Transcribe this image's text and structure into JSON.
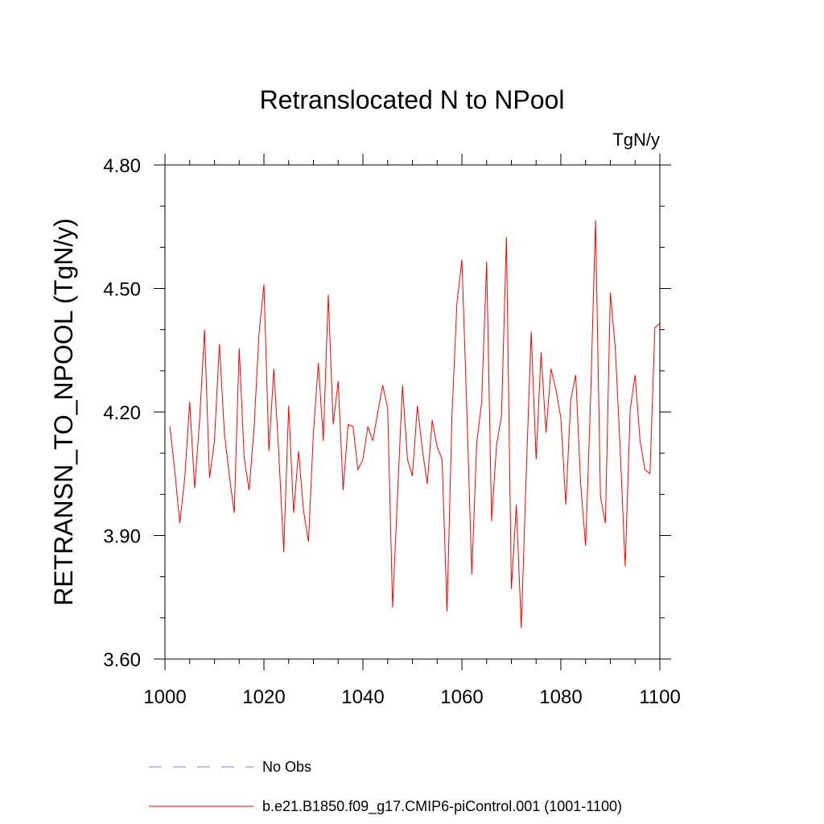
{
  "chart_data": {
    "type": "line",
    "title": "Retranslocated N to NPool",
    "units": "TgN/y",
    "xlabel": "",
    "ylabel": "RETRANSN_TO_NPOOL  (TgN/y)",
    "xlim": [
      1000,
      1100
    ],
    "ylim": [
      3.6,
      4.8
    ],
    "xticks": [
      1000,
      1020,
      1040,
      1060,
      1080,
      1100
    ],
    "xtick_labels": [
      "1000",
      "1020",
      "1040",
      "1060",
      "1080",
      "1100"
    ],
    "yticks": [
      3.6,
      3.9,
      4.2,
      4.5,
      4.8
    ],
    "ytick_labels": [
      "3.60",
      "3.90",
      "4.20",
      "4.50",
      "4.80"
    ],
    "y_minor_step": 0.1,
    "x_minor_step": 5,
    "grid": false,
    "legend": {
      "placement": "below",
      "entries": [
        {
          "label": "No Obs",
          "color": "#8080c0",
          "style": "dashed"
        },
        {
          "label": "b.e21.B1850.f09_g17.CMIP6-piControl.001 (1001-1100)",
          "color": "#ff0000",
          "style": "solid"
        }
      ]
    },
    "series": [
      {
        "name": "b.e21.B1850.f09_g17.CMIP6-piControl.001 (1001-1100)",
        "color": "#ff0000",
        "x": [
          1001,
          1002,
          1003,
          1004,
          1005,
          1006,
          1007,
          1008,
          1009,
          1010,
          1011,
          1012,
          1013,
          1014,
          1015,
          1016,
          1017,
          1018,
          1019,
          1020,
          1021,
          1022,
          1023,
          1024,
          1025,
          1026,
          1027,
          1028,
          1029,
          1030,
          1031,
          1032,
          1033,
          1034,
          1035,
          1036,
          1037,
          1038,
          1039,
          1040,
          1041,
          1042,
          1043,
          1044,
          1045,
          1046,
          1047,
          1048,
          1049,
          1050,
          1051,
          1052,
          1053,
          1054,
          1055,
          1056,
          1057,
          1058,
          1059,
          1060,
          1061,
          1062,
          1063,
          1064,
          1065,
          1066,
          1067,
          1068,
          1069,
          1070,
          1071,
          1072,
          1073,
          1074,
          1075,
          1076,
          1077,
          1078,
          1079,
          1080,
          1081,
          1082,
          1083,
          1084,
          1085,
          1086,
          1087,
          1088,
          1089,
          1090,
          1091,
          1092,
          1093,
          1094,
          1095,
          1096,
          1097,
          1098,
          1099,
          1100
        ],
        "values": [
          4.165,
          4.055,
          3.93,
          4.04,
          4.225,
          4.015,
          4.18,
          4.4,
          4.04,
          4.13,
          4.365,
          4.15,
          4.045,
          3.955,
          4.355,
          4.09,
          4.01,
          4.16,
          4.39,
          4.51,
          4.105,
          4.305,
          4.1,
          3.86,
          4.215,
          3.955,
          4.105,
          3.96,
          3.885,
          4.15,
          4.32,
          4.13,
          4.485,
          4.17,
          4.275,
          4.01,
          4.17,
          4.165,
          4.06,
          4.085,
          4.165,
          4.13,
          4.2,
          4.265,
          4.21,
          3.725,
          4.0,
          4.265,
          4.085,
          4.045,
          4.215,
          4.11,
          4.025,
          4.18,
          4.115,
          4.085,
          3.715,
          4.195,
          4.465,
          4.57,
          4.205,
          3.805,
          4.125,
          4.225,
          4.565,
          3.935,
          4.12,
          4.19,
          4.625,
          3.77,
          3.975,
          3.675,
          4.05,
          4.395,
          4.085,
          4.345,
          4.15,
          4.305,
          4.255,
          4.185,
          3.975,
          4.23,
          4.29,
          4.025,
          3.875,
          4.23,
          4.665,
          3.995,
          3.93,
          4.49,
          4.355,
          4.105,
          3.825,
          4.205,
          4.29,
          4.13,
          4.06,
          4.05,
          4.405,
          4.415
        ]
      }
    ]
  }
}
